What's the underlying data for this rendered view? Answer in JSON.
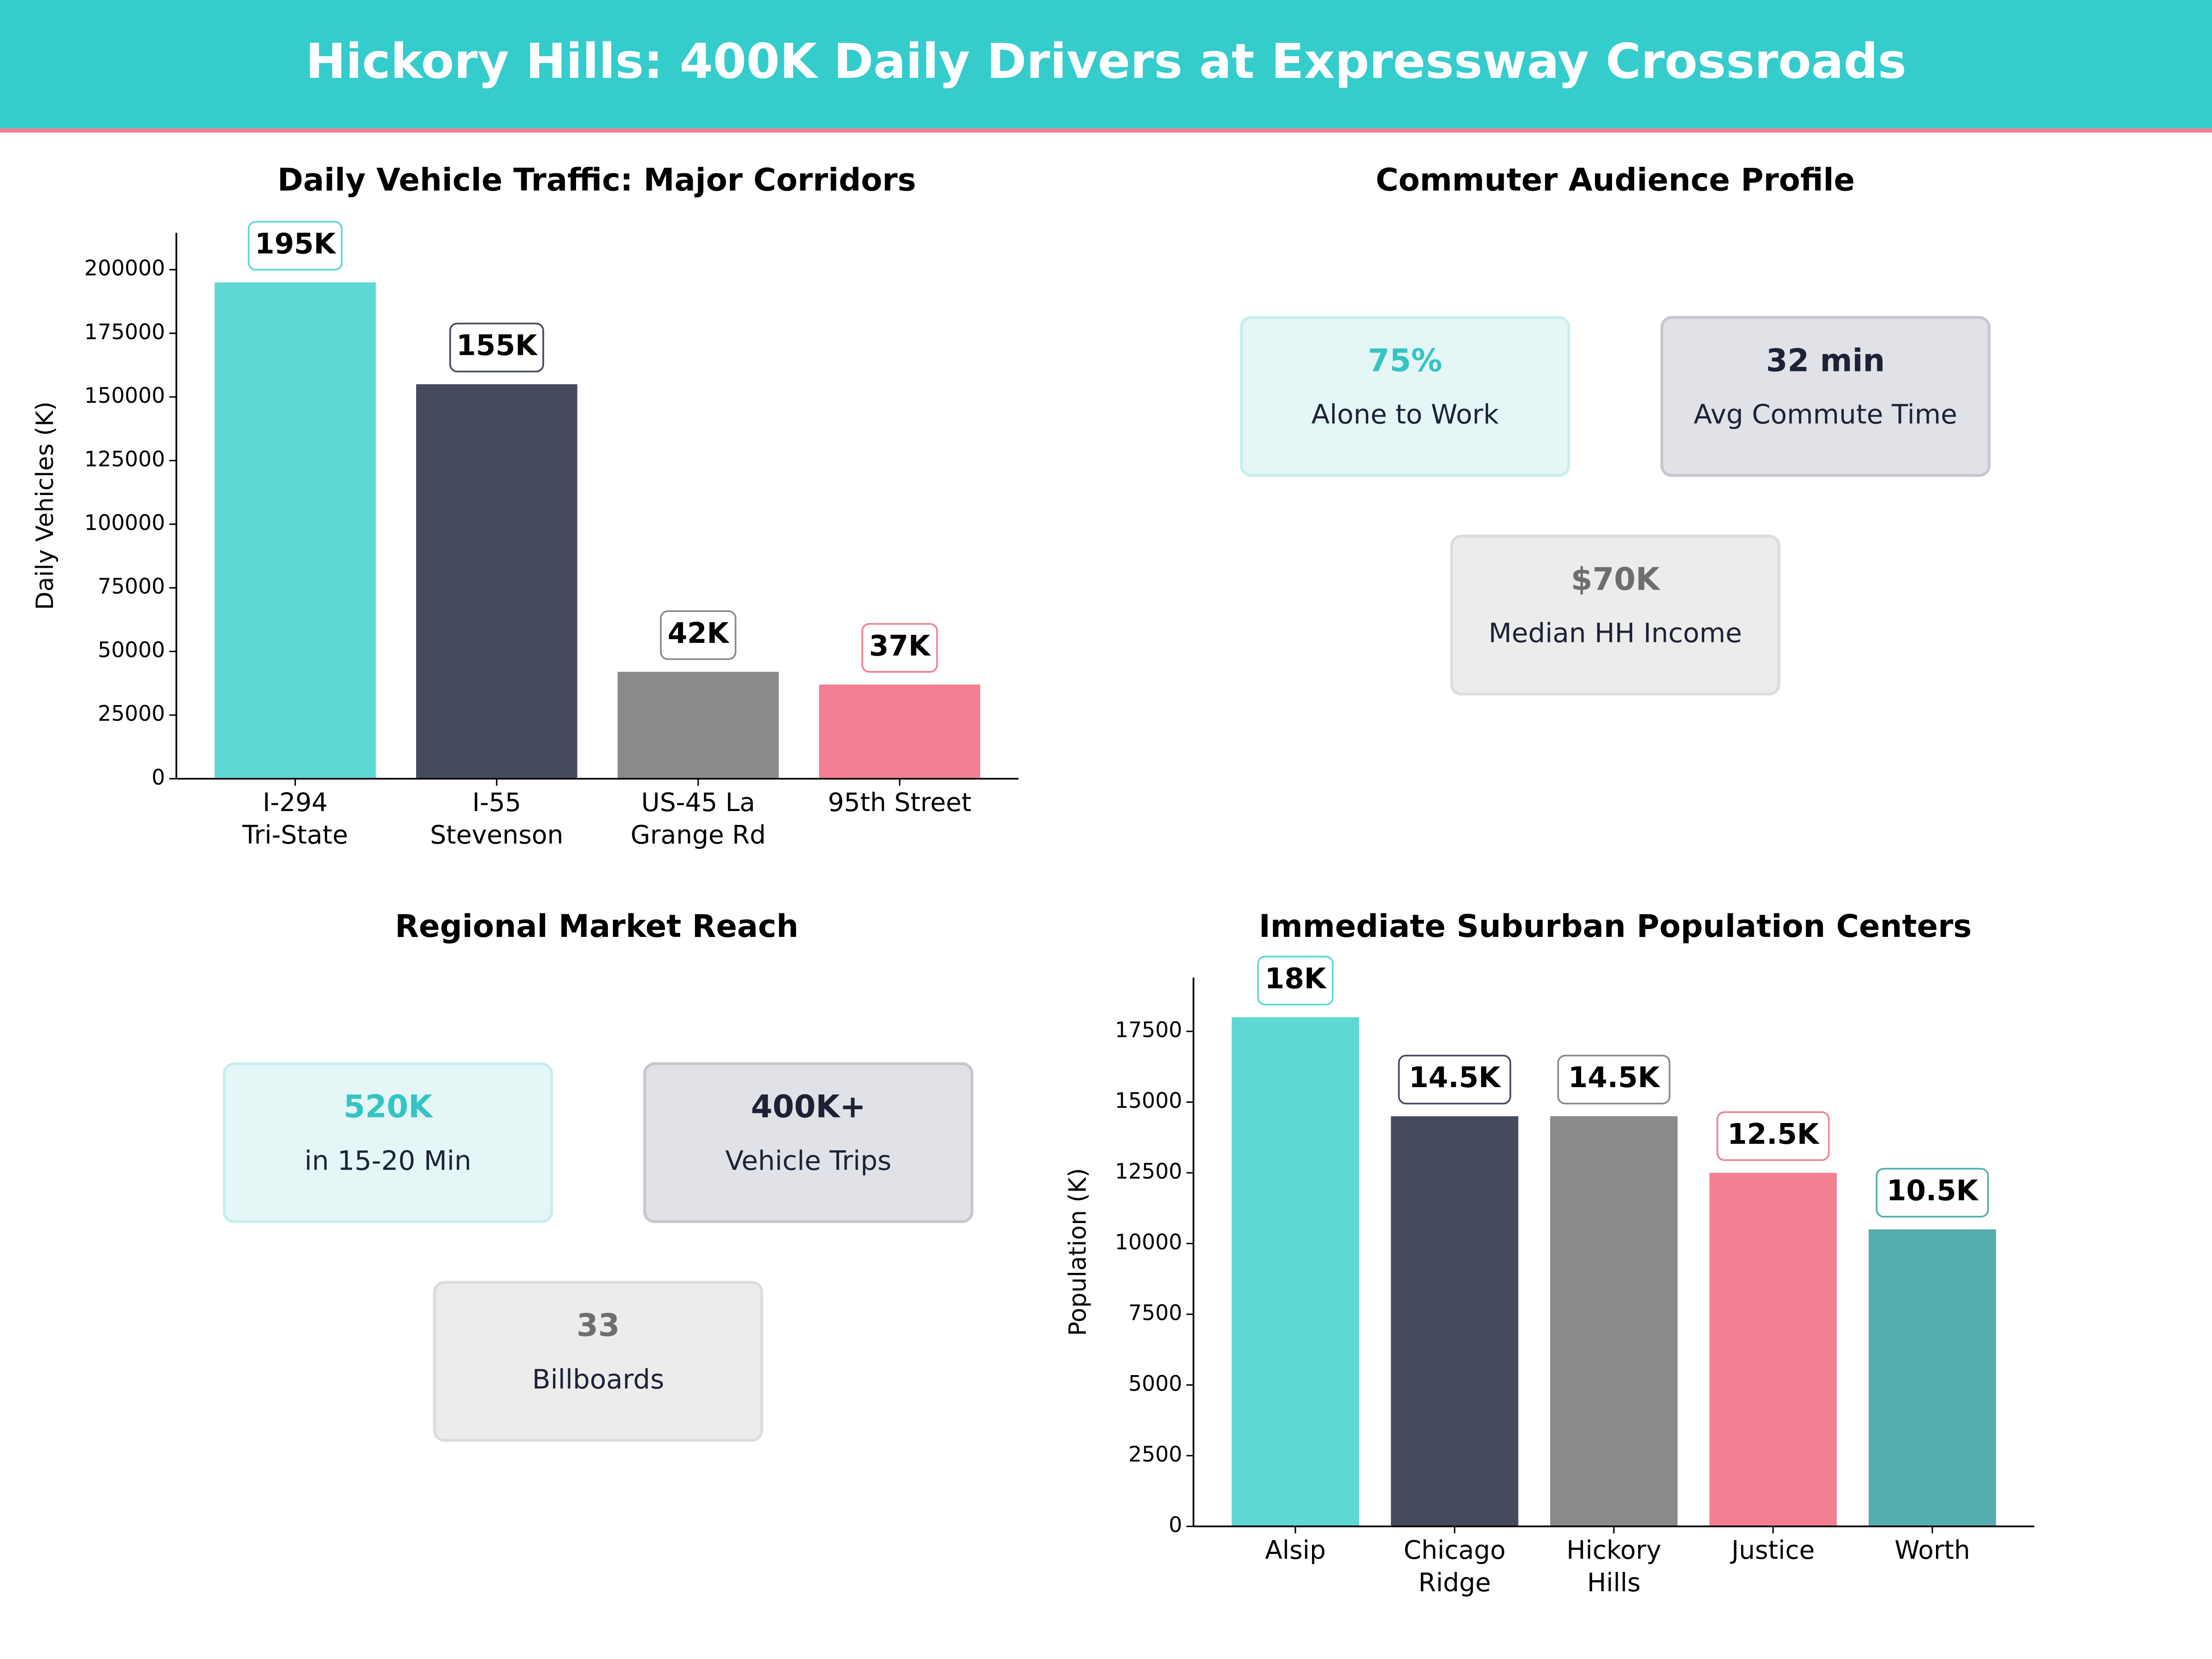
{
  "header": {
    "title": "Hickory Hills: 400K Daily Drivers at Expressway Crossroads"
  },
  "chart_data": [
    {
      "type": "bar",
      "title": "Daily Vehicle Traffic: Major Corridors",
      "y_label": "Daily Vehicles (K)",
      "categories": [
        "I-294\nTri-State",
        "I-55\nStevenson",
        "US-45 La\nGrange Rd",
        "95th Street"
      ],
      "values": [
        195000,
        155000,
        42000,
        37000
      ],
      "value_labels": [
        "195K",
        "155K",
        "42K",
        "37K"
      ],
      "colors": [
        "#5dd8d5",
        "#454a5f",
        "#8a8a8a",
        "#f47f92"
      ],
      "ylim": [
        0,
        214500
      ],
      "yticks": [
        0,
        25000,
        50000,
        75000,
        100000,
        125000,
        150000,
        175000,
        200000
      ]
    },
    {
      "type": "bar",
      "title": "Immediate Suburban Population Centers",
      "y_label": "Population (K)",
      "categories": [
        "Alsip",
        "Chicago\nRidge",
        "Hickory\nHills",
        "Justice",
        "Worth"
      ],
      "values": [
        18000,
        14500,
        14500,
        12500,
        10500
      ],
      "value_labels": [
        "18K",
        "14.5K",
        "14.5K",
        "12.5K",
        "10.5K"
      ],
      "colors": [
        "#5dd8d5",
        "#454a5f",
        "#8a8a8a",
        "#f47f92",
        "#56adad"
      ],
      "ylim": [
        0,
        19400
      ],
      "yticks": [
        0,
        2500,
        5000,
        7500,
        10000,
        12500,
        15000,
        17500
      ]
    }
  ],
  "panels": [
    {
      "title": "Commuter Audience Profile",
      "cards": [
        {
          "value": "75%",
          "label": "Alone to Work"
        },
        {
          "value": "32 min",
          "label": "Avg Commute Time"
        },
        {
          "value": "$70K",
          "label": "Median HH Income"
        }
      ]
    },
    {
      "title": "Regional Market Reach",
      "cards": [
        {
          "value": "520K",
          "label": "in 15-20 Min"
        },
        {
          "value": "400K+",
          "label": "Vehicle Trips"
        },
        {
          "value": "33",
          "label": "Billboards"
        }
      ]
    }
  ]
}
